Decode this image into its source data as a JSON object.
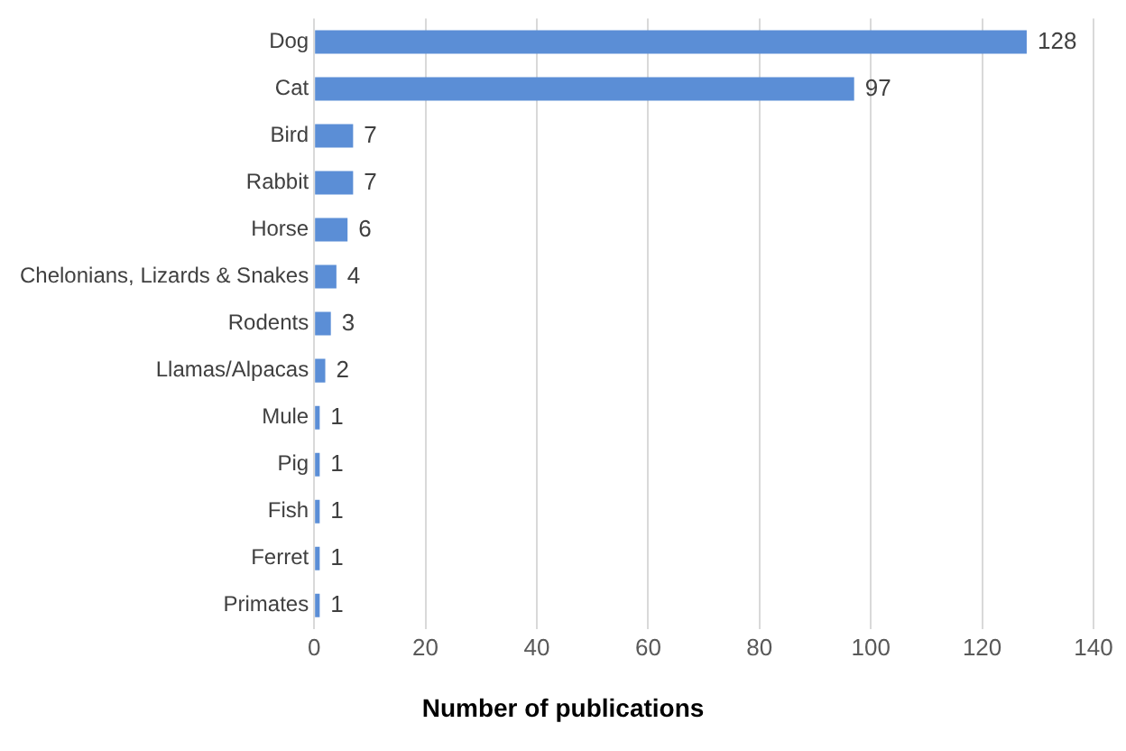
{
  "chart_data": {
    "type": "bar",
    "orientation": "horizontal",
    "xlabel": "Number of publications",
    "categories": [
      "Dog",
      "Cat",
      "Bird",
      "Rabbit",
      "Horse",
      "Chelonians, Lizards & Snakes",
      "Rodents",
      "Llamas/Alpacas",
      "Mule",
      "Pig",
      "Fish",
      "Ferret",
      "Primates"
    ],
    "values": [
      128,
      97,
      7,
      7,
      6,
      4,
      3,
      2,
      1,
      1,
      1,
      1,
      1
    ],
    "color": "#5b8ed6",
    "xlim": [
      0,
      140
    ],
    "xticks": [
      0,
      20,
      40,
      60,
      80,
      100,
      120,
      140
    ],
    "grid": "x",
    "data_labels": true,
    "legend": false
  }
}
